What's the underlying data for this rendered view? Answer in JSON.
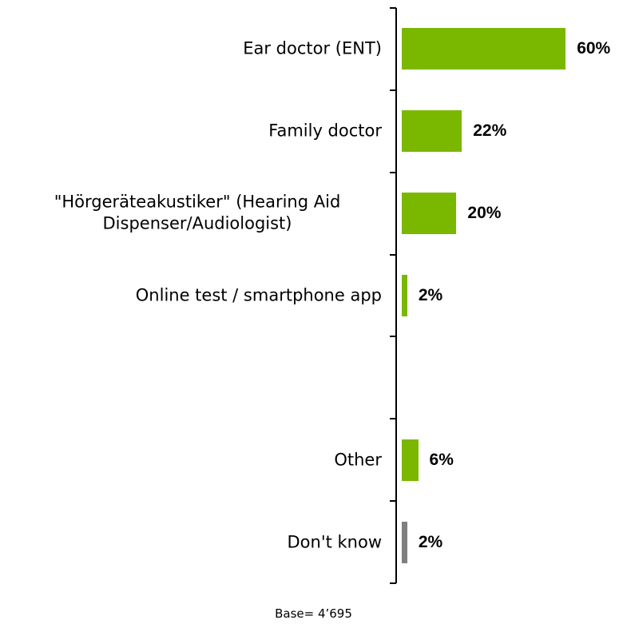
{
  "chart_data": {
    "type": "bar",
    "orientation": "horizontal",
    "categories": [
      "Ear doctor (ENT)",
      "Family doctor",
      "\"Hörgeräteakustiker\" (Hearing Aid Dispenser/Audiologist)",
      "Online test / smartphone app",
      null,
      "Other",
      "Don't know"
    ],
    "values": [
      60,
      22,
      20,
      2,
      null,
      6,
      2
    ],
    "value_labels": [
      "60%",
      "22%",
      "20%",
      "2%",
      null,
      "6%",
      "2%"
    ],
    "colors": [
      "#7ab800",
      "#7ab800",
      "#7ab800",
      "#7ab800",
      null,
      "#7ab800",
      "#7f7f7f"
    ],
    "footnote": "Base= 4’695"
  }
}
